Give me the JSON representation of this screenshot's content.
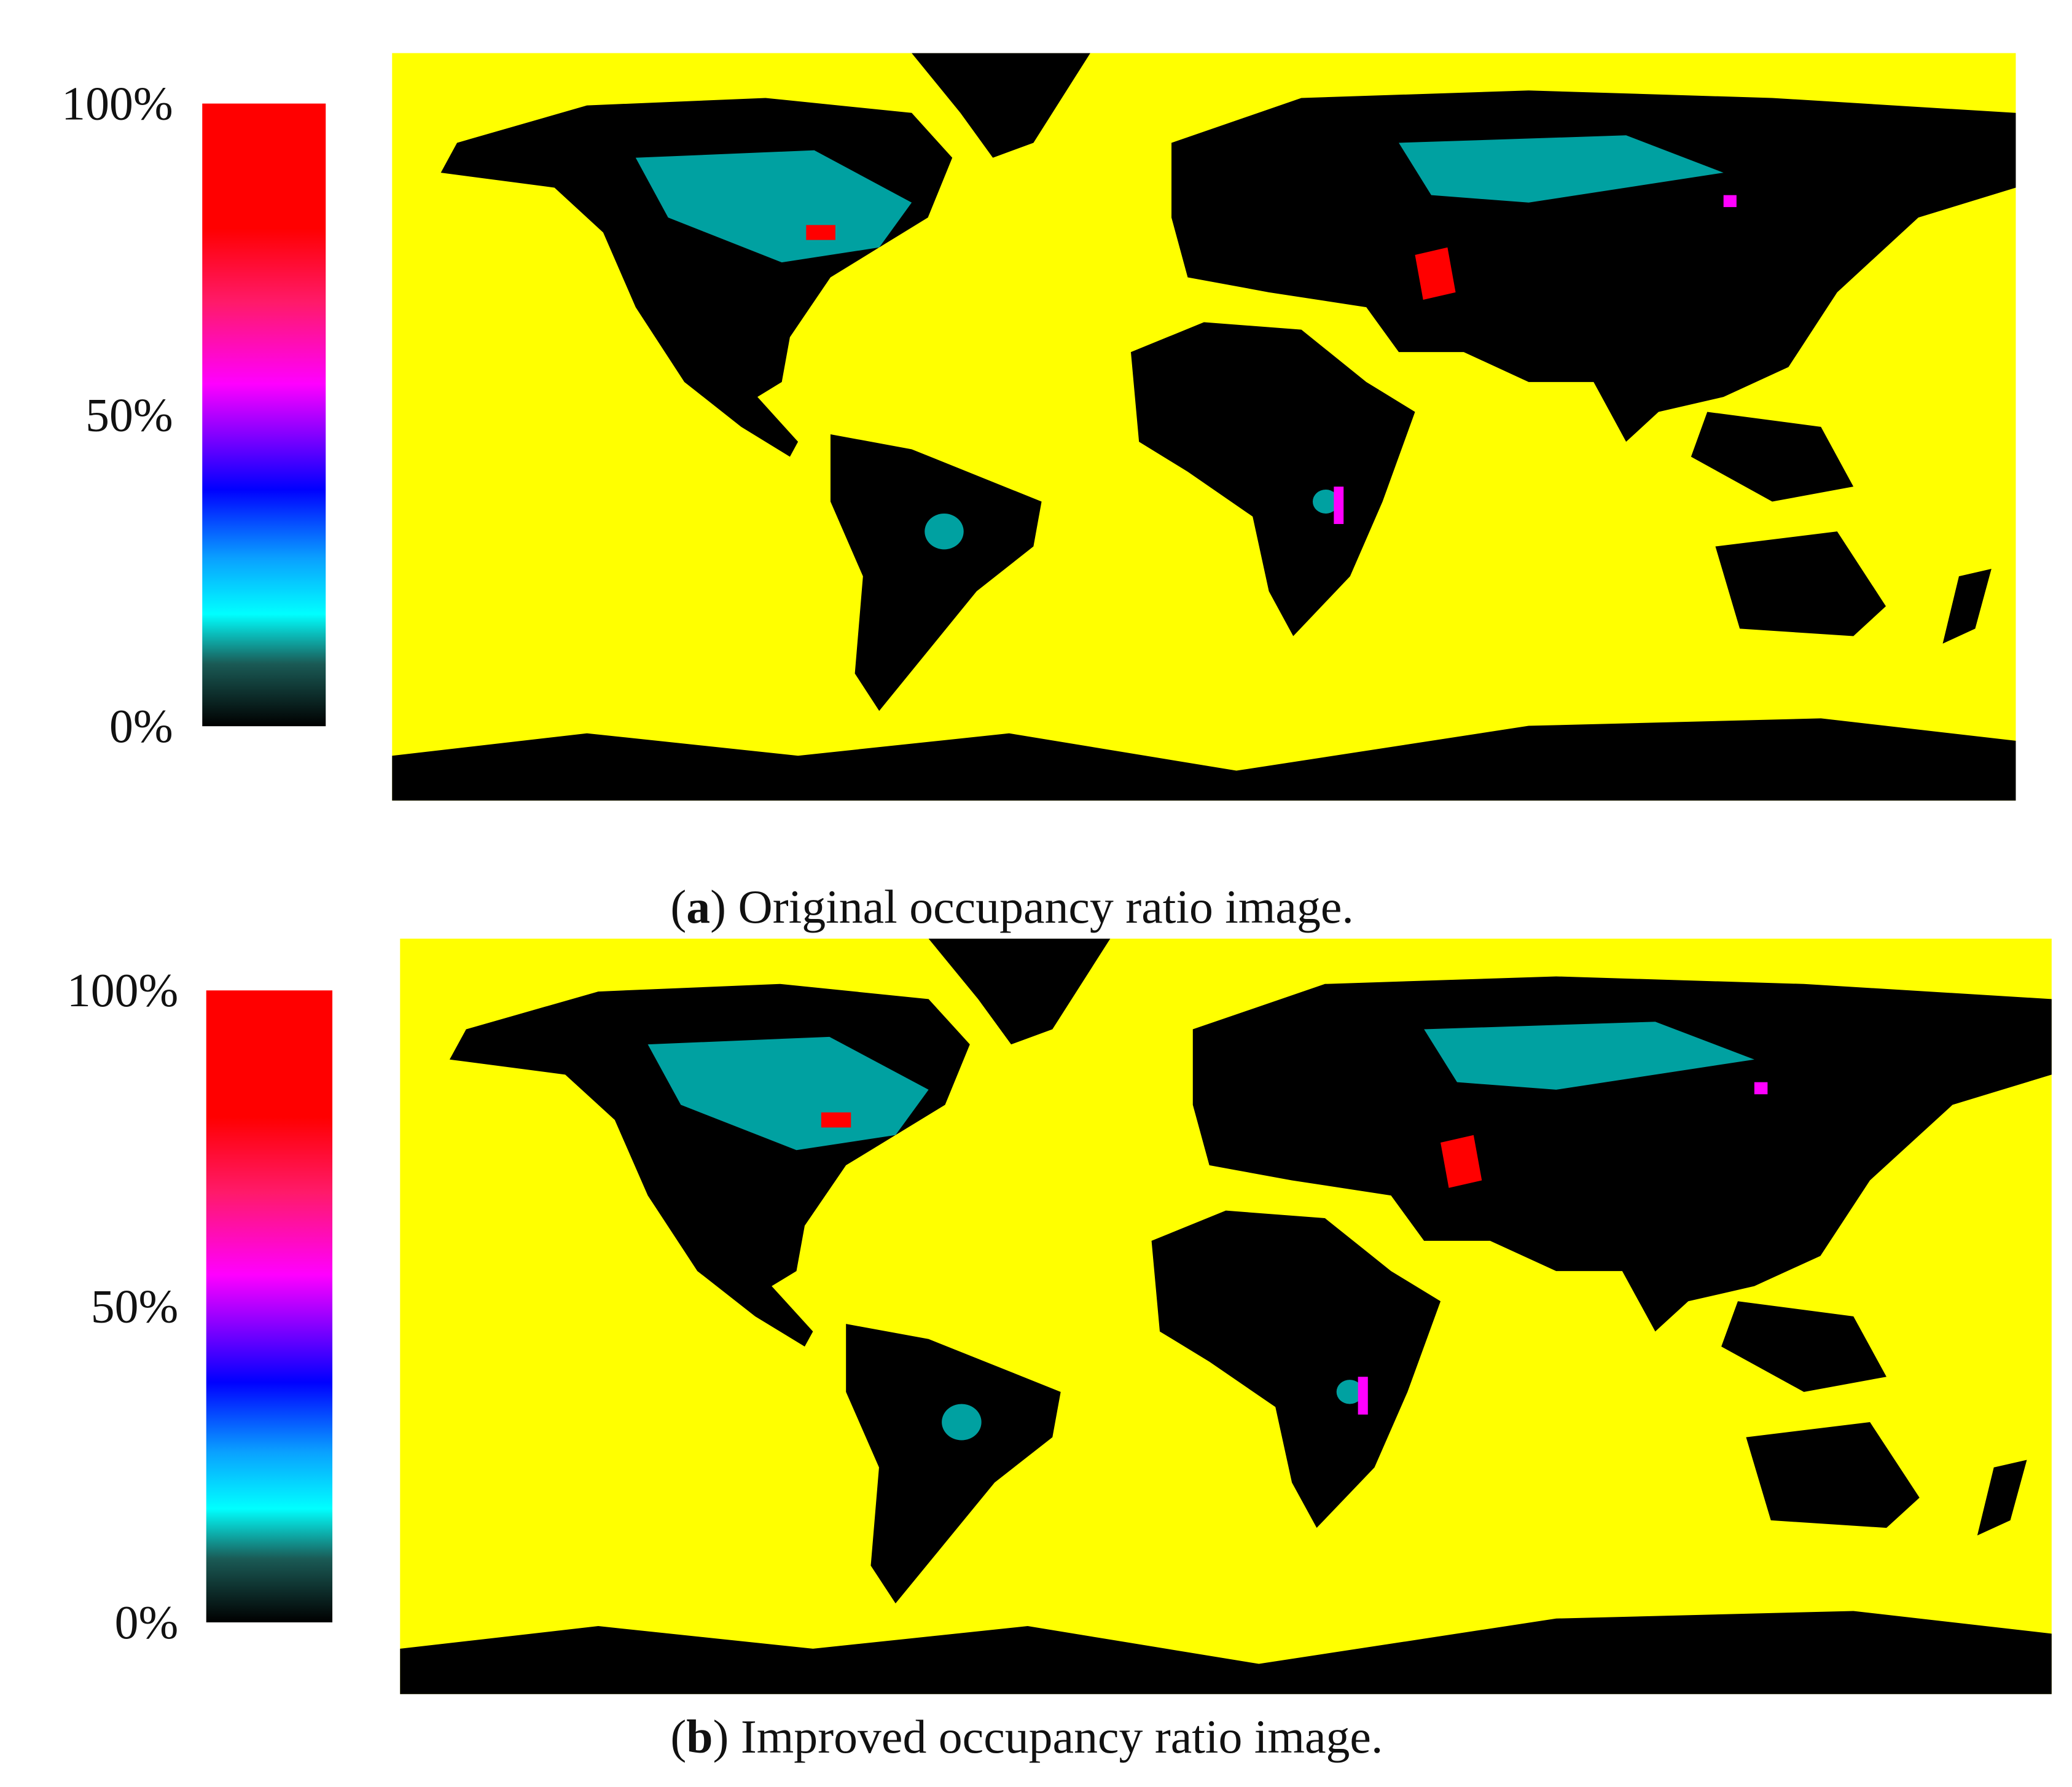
{
  "panels": [
    {
      "caption": [
        "(",
        "a",
        ") Original occupancy ratio image."
      ],
      "colorbar": {
        "ticks": [
          {
            "value": 100,
            "label": "100%"
          },
          {
            "value": 50,
            "label": "50%"
          },
          {
            "value": 0,
            "label": "0%"
          }
        ]
      }
    },
    {
      "caption": [
        "(",
        "b",
        ") Improved occupancy ratio image."
      ],
      "colorbar": {
        "ticks": [
          {
            "value": 100,
            "label": "100%"
          },
          {
            "value": 50,
            "label": "50%"
          },
          {
            "value": 0,
            "label": "0%"
          }
        ]
      }
    }
  ]
}
